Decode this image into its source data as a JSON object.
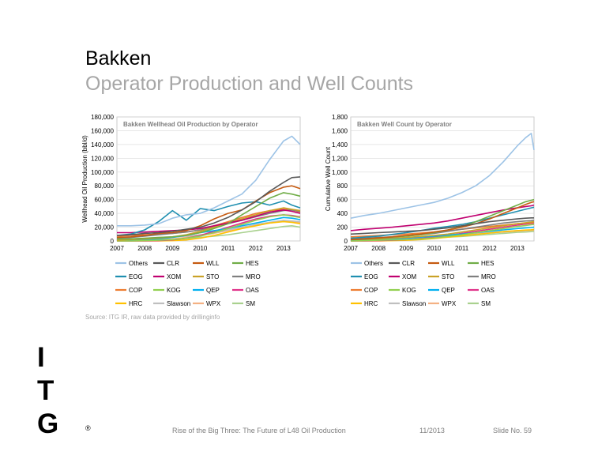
{
  "header": {
    "title": "Bakken",
    "subtitle": "Operator Production and Well Counts"
  },
  "source": "Source: ITG IR, raw data provided by drillinginfo",
  "footer": {
    "presentation": "Rise of the Big Three: The Future of L48 Oil Production",
    "date": "11/2013",
    "slide": "Slide No. 59"
  },
  "logo": {
    "letters": [
      "I",
      "T",
      "G"
    ],
    "mark": "®"
  },
  "colors": {
    "Others": "#9dc3e6",
    "CLR": "#595959",
    "WLL": "#c55a11",
    "HES": "#70ad47",
    "EOG": "#1f8fb0",
    "XOM": "#c00070",
    "STO": "#c9a227",
    "MRO": "#7f7f7f",
    "COP": "#ed7d31",
    "KOG": "#92d050",
    "QEP": "#00b0f0",
    "OAS": "#e0338a",
    "HRC": "#ffc000",
    "Slawson": "#bfbfbf",
    "WPX": "#f4b183",
    "SM": "#a9d18e"
  },
  "chart_data": [
    {
      "type": "line",
      "title": "Bakken Wellhead Oil Production by Operator",
      "ylabel": "Wellhead Oil Production (bbl/d)",
      "xlabel": "",
      "x_ticks": [
        "2007",
        "2008",
        "2009",
        "2010",
        "2011",
        "2012",
        "2013"
      ],
      "y_ticks": [
        "0",
        "20,000",
        "40,000",
        "60,000",
        "80,000",
        "100,000",
        "120,000",
        "140,000",
        "160,000",
        "180,000"
      ],
      "ylim": [
        0,
        180000
      ],
      "xlim": [
        2007,
        2013.6
      ],
      "grid": "horizontal",
      "legend": "bottom",
      "x": [
        2007,
        2007.5,
        2008,
        2008.5,
        2009,
        2009.5,
        2010,
        2010.5,
        2011,
        2011.5,
        2012,
        2012.5,
        2013,
        2013.3,
        2013.6
      ],
      "series": [
        {
          "name": "Others",
          "values": [
            22000,
            22000,
            23000,
            25000,
            33000,
            38000,
            40000,
            48000,
            58000,
            68000,
            88000,
            118000,
            145000,
            152000,
            140000
          ]
        },
        {
          "name": "CLR",
          "values": [
            8000,
            9000,
            11000,
            12000,
            14000,
            17000,
            20000,
            26000,
            34000,
            45000,
            57000,
            72000,
            85000,
            92000,
            93000
          ]
        },
        {
          "name": "WLL",
          "values": [
            5000,
            6000,
            8000,
            11000,
            12000,
            15000,
            22000,
            32000,
            40000,
            45000,
            58000,
            70000,
            78000,
            80000,
            76000
          ]
        },
        {
          "name": "HES",
          "values": [
            3000,
            3000,
            4000,
            5000,
            6000,
            8000,
            12000,
            18000,
            25000,
            38000,
            50000,
            62000,
            70000,
            68000,
            65000
          ]
        },
        {
          "name": "EOG",
          "values": [
            8000,
            10000,
            16000,
            28000,
            44000,
            30000,
            47000,
            44000,
            50000,
            55000,
            57000,
            52000,
            58000,
            52000,
            48000
          ]
        },
        {
          "name": "XOM",
          "values": [
            12000,
            12000,
            13000,
            14000,
            15000,
            16000,
            18000,
            22000,
            26000,
            30000,
            36000,
            42000,
            45000,
            43000,
            40000
          ]
        },
        {
          "name": "STO",
          "values": [
            1000,
            2000,
            3000,
            4000,
            6000,
            9000,
            14000,
            20000,
            26000,
            32000,
            38000,
            44000,
            48000,
            46000,
            44000
          ]
        },
        {
          "name": "MRO",
          "values": [
            4000,
            5000,
            7000,
            9000,
            11000,
            13000,
            16000,
            20000,
            25000,
            30000,
            35000,
            40000,
            44000,
            45000,
            43000
          ]
        },
        {
          "name": "COP",
          "values": [
            7000,
            8000,
            9000,
            10000,
            11000,
            13000,
            16000,
            22000,
            28000,
            34000,
            40000,
            44000,
            46000,
            45000,
            42000
          ]
        },
        {
          "name": "KOG",
          "values": [
            0,
            0,
            500,
            1000,
            2000,
            4000,
            7000,
            12000,
            18000,
            24000,
            30000,
            35000,
            38000,
            36000,
            34000
          ]
        },
        {
          "name": "QEP",
          "values": [
            1000,
            1500,
            2000,
            3000,
            5000,
            8000,
            12000,
            15000,
            18000,
            22000,
            26000,
            30000,
            34000,
            33000,
            31000
          ]
        },
        {
          "name": "OAS",
          "values": [
            0,
            0,
            0,
            500,
            1500,
            4000,
            8000,
            14000,
            20000,
            26000,
            32000,
            36000,
            38000,
            37000,
            35000
          ]
        },
        {
          "name": "HRC",
          "values": [
            0,
            0,
            0,
            0,
            500,
            1500,
            4000,
            8000,
            13000,
            18000,
            22000,
            26000,
            28000,
            27000,
            25000
          ]
        },
        {
          "name": "Slawson",
          "values": [
            2000,
            3000,
            4000,
            5000,
            6000,
            7000,
            9000,
            12000,
            16000,
            20000,
            24000,
            27000,
            30000,
            29000,
            28000
          ]
        },
        {
          "name": "WPX",
          "values": [
            0,
            500,
            1000,
            2000,
            3000,
            5000,
            8000,
            11000,
            15000,
            19000,
            23000,
            26000,
            29000,
            28000,
            27000
          ]
        },
        {
          "name": "SM",
          "values": [
            0,
            0,
            500,
            1000,
            2000,
            3500,
            5000,
            7000,
            9000,
            12000,
            15000,
            18000,
            21000,
            22000,
            20000
          ]
        }
      ]
    },
    {
      "type": "line",
      "title": "Bakken Well Count by Operator",
      "ylabel": "Cumulative Well Count",
      "xlabel": "",
      "x_ticks": [
        "2007",
        "2008",
        "2009",
        "2010",
        "2011",
        "2012",
        "2013"
      ],
      "y_ticks": [
        "0",
        "200",
        "400",
        "600",
        "800",
        "1,000",
        "1,200",
        "1,400",
        "1,600",
        "1,800"
      ],
      "ylim": [
        0,
        1800
      ],
      "xlim": [
        2007,
        2013.6
      ],
      "grid": "horizontal",
      "legend": "bottom",
      "x": [
        2007,
        2007.5,
        2008,
        2008.5,
        2009,
        2009.5,
        2010,
        2010.5,
        2011,
        2011.5,
        2012,
        2012.5,
        2013,
        2013.3,
        2013.5,
        2013.6
      ],
      "series": [
        {
          "name": "Others",
          "values": [
            330,
            370,
            400,
            440,
            480,
            520,
            560,
            620,
            700,
            800,
            950,
            1150,
            1380,
            1500,
            1560,
            1320
          ]
        },
        {
          "name": "CLR",
          "values": [
            100,
            110,
            120,
            130,
            140,
            150,
            170,
            190,
            220,
            250,
            280,
            300,
            320,
            330,
            335,
            335
          ]
        },
        {
          "name": "WLL",
          "values": [
            20,
            30,
            45,
            60,
            80,
            100,
            130,
            160,
            200,
            250,
            320,
            400,
            480,
            530,
            560,
            570
          ]
        },
        {
          "name": "HES",
          "values": [
            20,
            30,
            40,
            55,
            70,
            90,
            120,
            160,
            210,
            280,
            360,
            440,
            520,
            570,
            590,
            600
          ]
        },
        {
          "name": "EOG",
          "values": [
            40,
            55,
            70,
            95,
            120,
            150,
            185,
            210,
            240,
            280,
            330,
            380,
            430,
            460,
            480,
            490
          ]
        },
        {
          "name": "XOM",
          "values": [
            150,
            170,
            185,
            200,
            220,
            240,
            260,
            290,
            330,
            370,
            410,
            450,
            480,
            500,
            510,
            520
          ]
        },
        {
          "name": "STO",
          "values": [
            20,
            25,
            30,
            40,
            50,
            65,
            80,
            100,
            130,
            160,
            190,
            220,
            250,
            265,
            275,
            280
          ]
        },
        {
          "name": "MRO",
          "values": [
            30,
            40,
            50,
            60,
            75,
            90,
            110,
            140,
            170,
            200,
            230,
            260,
            280,
            290,
            295,
            300
          ]
        },
        {
          "name": "COP",
          "values": [
            60,
            70,
            80,
            90,
            100,
            115,
            130,
            150,
            170,
            190,
            210,
            230,
            250,
            260,
            265,
            270
          ]
        },
        {
          "name": "KOG",
          "values": [
            0,
            5,
            10,
            15,
            20,
            30,
            45,
            65,
            90,
            120,
            150,
            180,
            210,
            225,
            235,
            240
          ]
        },
        {
          "name": "QEP",
          "values": [
            10,
            15,
            20,
            30,
            40,
            55,
            70,
            85,
            100,
            120,
            140,
            160,
            180,
            190,
            195,
            200
          ]
        },
        {
          "name": "OAS",
          "values": [
            0,
            0,
            5,
            10,
            20,
            35,
            55,
            80,
            110,
            140,
            170,
            200,
            230,
            245,
            255,
            260
          ]
        },
        {
          "name": "HRC",
          "values": [
            0,
            0,
            0,
            5,
            10,
            20,
            35,
            55,
            75,
            95,
            115,
            135,
            150,
            158,
            162,
            165
          ]
        },
        {
          "name": "Slawson",
          "values": [
            10,
            15,
            20,
            30,
            40,
            50,
            60,
            75,
            90,
            105,
            120,
            135,
            150,
            155,
            160,
            160
          ]
        },
        {
          "name": "WPX",
          "values": [
            5,
            10,
            15,
            25,
            35,
            45,
            55,
            70,
            85,
            100,
            115,
            130,
            145,
            150,
            155,
            155
          ]
        },
        {
          "name": "SM",
          "values": [
            0,
            5,
            10,
            15,
            25,
            35,
            45,
            55,
            65,
            80,
            95,
            110,
            125,
            130,
            135,
            140
          ]
        }
      ]
    }
  ]
}
